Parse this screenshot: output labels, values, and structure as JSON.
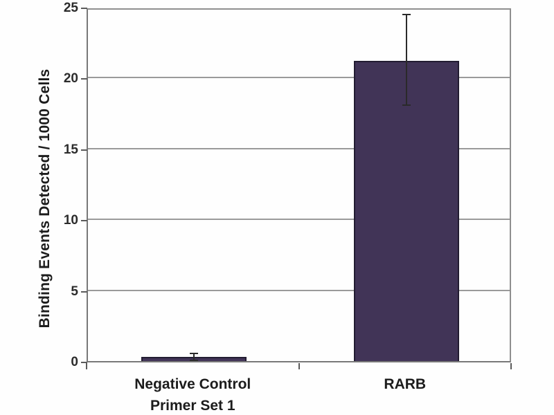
{
  "chart_data": {
    "type": "bar",
    "title": "",
    "xlabel": "",
    "ylabel": "Binding Events Detected / 1000 Cells",
    "categories": [
      "Negative Control\nPrimer Set 1",
      "RARB"
    ],
    "values": [
      0.3,
      21.2
    ],
    "error_minus": [
      0.2,
      3.1
    ],
    "error_plus": [
      0.2,
      3.2
    ],
    "ylim": [
      0,
      25
    ],
    "yticks": [
      0,
      5,
      10,
      15,
      20,
      25
    ],
    "grid": true,
    "legend": "none",
    "bar_color": "#413457",
    "bar_border_color": "#221c31",
    "gridline_color": "#9a9a9a",
    "axis_color": "#787878",
    "error_bar_color": "#2a2a2a",
    "text_color": "#1c1c1c"
  }
}
